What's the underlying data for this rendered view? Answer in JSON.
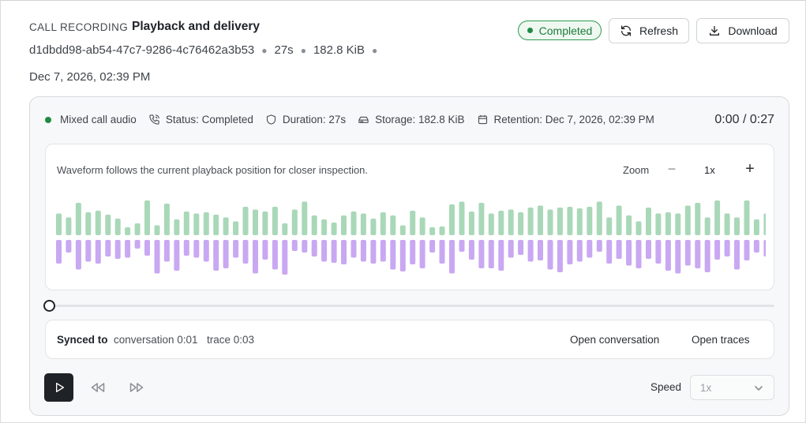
{
  "header": {
    "kicker": "CALL RECORDING",
    "title": "Playback and delivery",
    "recording_id": "d1dbdd98-ab54-47c7-9286-4c76462a3b53",
    "duration": "27s",
    "size": "182.8 KiB",
    "date": "Dec 7, 2026, 02:39 PM",
    "status": "Completed",
    "refresh_label": "Refresh",
    "download_label": "Download"
  },
  "info": {
    "channel": "Mixed call audio",
    "status": "Status: Completed",
    "duration": "Duration: 27s",
    "storage": "Storage: 182.8 KiB",
    "retention": "Retention: Dec 7, 2026, 02:39 PM",
    "time_readout": "0:00 / 0:27"
  },
  "waveform": {
    "caption": "Waveform follows the current playback position for closer inspection.",
    "zoom_label": "Zoom",
    "zoom_value": "1x",
    "colors": {
      "top": "#a9d8b8",
      "bottom": "#c9a8f2"
    },
    "top_levels": [
      0.55,
      0.45,
      0.82,
      0.58,
      0.62,
      0.52,
      0.42,
      0.2,
      0.3,
      0.88,
      0.25,
      0.8,
      0.4,
      0.6,
      0.55,
      0.58,
      0.52,
      0.45,
      0.35,
      0.72,
      0.65,
      0.6,
      0.72,
      0.3,
      0.65,
      0.85,
      0.5,
      0.4,
      0.32,
      0.5,
      0.6,
      0.55,
      0.42,
      0.58,
      0.5,
      0.25,
      0.62,
      0.45,
      0.2,
      0.22,
      0.78,
      0.85,
      0.6,
      0.82,
      0.55,
      0.62,
      0.65,
      0.58,
      0.7,
      0.75,
      0.65,
      0.7,
      0.72,
      0.68,
      0.72,
      0.85,
      0.45,
      0.75,
      0.5,
      0.35,
      0.7,
      0.55,
      0.58,
      0.55,
      0.75,
      0.82,
      0.45,
      0.88,
      0.55,
      0.45,
      0.88,
      0.4,
      0.55,
      0.52,
      0.88,
      0.48
    ],
    "bottom_levels": [
      0.6,
      0.32,
      0.75,
      0.55,
      0.6,
      0.42,
      0.48,
      0.45,
      0.22,
      0.4,
      0.85,
      0.55,
      0.78,
      0.4,
      0.45,
      0.55,
      0.78,
      0.72,
      0.45,
      0.6,
      0.85,
      0.5,
      0.75,
      0.88,
      0.28,
      0.32,
      0.42,
      0.55,
      0.58,
      0.62,
      0.45,
      0.55,
      0.6,
      0.55,
      0.75,
      0.8,
      0.62,
      0.72,
      0.32,
      0.6,
      0.85,
      0.3,
      0.5,
      0.72,
      0.72,
      0.78,
      0.45,
      0.38,
      0.55,
      0.52,
      0.75,
      0.82,
      0.62,
      0.55,
      0.45,
      0.3,
      0.6,
      0.48,
      0.65,
      0.72,
      0.48,
      0.6,
      0.78,
      0.85,
      0.65,
      0.72,
      0.82,
      0.5,
      0.42,
      0.75,
      0.52,
      0.32,
      0.42,
      0.78,
      0.85,
      0.78
    ],
    "playhead_fraction": 0
  },
  "sync": {
    "label": "Synced to",
    "conversation": "conversation 0:01",
    "trace": "trace 0:03",
    "open_conversation": "Open conversation",
    "open_traces": "Open traces"
  },
  "controls": {
    "speed_label": "Speed",
    "speed_value": "1x"
  }
}
